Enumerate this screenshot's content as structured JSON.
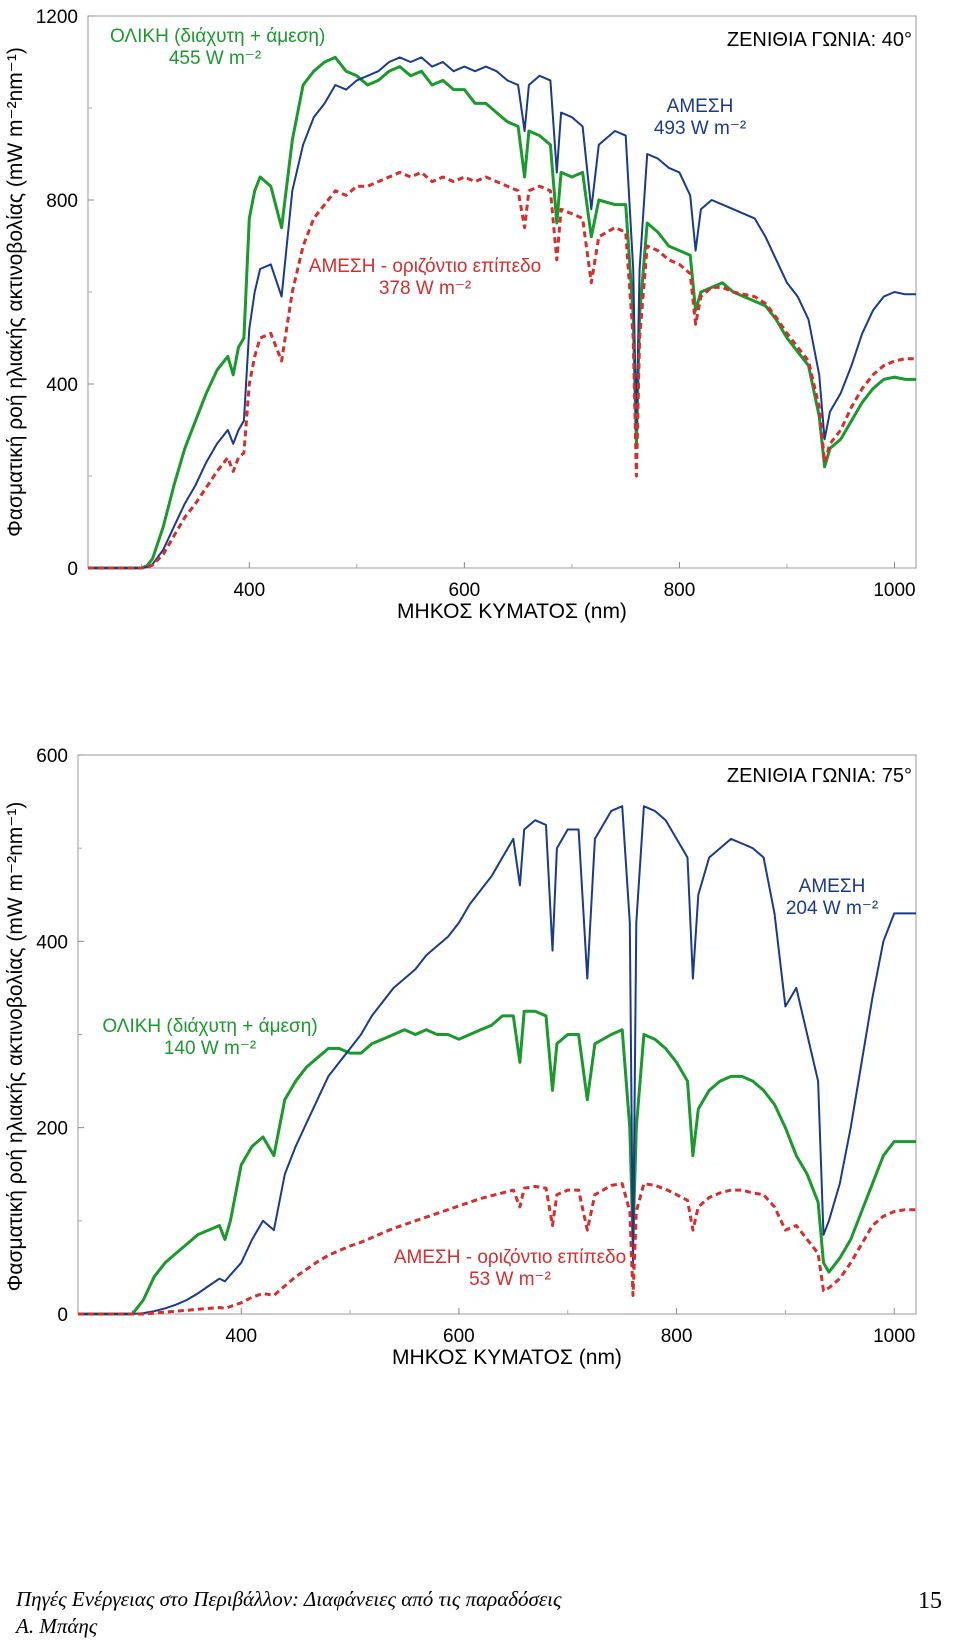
{
  "chart_data": [
    {
      "type": "line",
      "title": "ΖΕΝΙΘΙΑ ΓΩΝΙΑ: 40°",
      "xlabel": "ΜΗΚΟΣ ΚΥΜΑΤΟΣ (nm)",
      "ylabel": "Φασματική ροή ηλιακής ακτινοβολίας (mW m⁻²nm⁻¹)",
      "xlim": [
        250,
        1020
      ],
      "ylim": [
        0,
        1200
      ],
      "xticks": [
        400,
        600,
        800,
        1000
      ],
      "yticks": [
        0,
        400,
        800,
        1200
      ],
      "series": [
        {
          "name": "ΟΛΙΚΗ (διάχυτη + άμεση)",
          "value_label": "455 W m⁻²",
          "color": "#1a9a2c",
          "dashed": false,
          "x": [
            250,
            300,
            305,
            310,
            320,
            330,
            340,
            350,
            360,
            370,
            380,
            385,
            390,
            395,
            400,
            405,
            410,
            420,
            430,
            440,
            450,
            460,
            470,
            480,
            490,
            500,
            510,
            520,
            530,
            540,
            550,
            560,
            570,
            580,
            590,
            600,
            610,
            620,
            630,
            640,
            650,
            656,
            660,
            670,
            680,
            686,
            690,
            700,
            710,
            718,
            725,
            740,
            750,
            757,
            760,
            763,
            770,
            780,
            790,
            800,
            810,
            815,
            820,
            830,
            840,
            850,
            860,
            870,
            880,
            890,
            900,
            910,
            920,
            930,
            935,
            940,
            950,
            960,
            970,
            980,
            990,
            1000,
            1010,
            1020
          ],
          "y": [
            0,
            0,
            5,
            20,
            90,
            180,
            260,
            320,
            380,
            430,
            460,
            420,
            480,
            500,
            760,
            820,
            850,
            830,
            740,
            930,
            1050,
            1080,
            1100,
            1110,
            1080,
            1070,
            1050,
            1060,
            1080,
            1090,
            1070,
            1080,
            1050,
            1060,
            1040,
            1040,
            1010,
            1010,
            990,
            970,
            960,
            850,
            950,
            940,
            920,
            750,
            860,
            850,
            860,
            720,
            800,
            790,
            790,
            550,
            270,
            550,
            750,
            730,
            700,
            690,
            680,
            560,
            600,
            610,
            620,
            600,
            590,
            580,
            570,
            540,
            500,
            470,
            440,
            330,
            220,
            260,
            280,
            320,
            360,
            390,
            410,
            415,
            410,
            410
          ]
        },
        {
          "name": "ΑΜΕΣΗ",
          "value_label": "493 W m⁻²",
          "color": "#1a3a8c",
          "dashed": false,
          "x": [
            250,
            300,
            305,
            310,
            320,
            330,
            340,
            350,
            360,
            370,
            380,
            385,
            390,
            395,
            400,
            405,
            410,
            420,
            430,
            440,
            450,
            460,
            470,
            480,
            490,
            500,
            510,
            520,
            530,
            540,
            550,
            560,
            570,
            580,
            590,
            600,
            610,
            620,
            630,
            640,
            650,
            656,
            660,
            670,
            680,
            686,
            690,
            700,
            710,
            718,
            725,
            740,
            750,
            757,
            760,
            763,
            770,
            780,
            790,
            800,
            810,
            815,
            820,
            830,
            840,
            850,
            860,
            870,
            880,
            890,
            900,
            910,
            920,
            930,
            935,
            940,
            950,
            960,
            970,
            980,
            990,
            1000,
            1010,
            1020
          ],
          "y": [
            0,
            0,
            2,
            8,
            40,
            90,
            140,
            180,
            230,
            270,
            300,
            270,
            300,
            320,
            520,
            600,
            650,
            660,
            590,
            820,
            920,
            980,
            1010,
            1050,
            1040,
            1060,
            1070,
            1080,
            1100,
            1110,
            1100,
            1110,
            1090,
            1100,
            1080,
            1090,
            1080,
            1090,
            1080,
            1060,
            1050,
            950,
            1050,
            1070,
            1060,
            860,
            990,
            980,
            960,
            780,
            920,
            950,
            940,
            650,
            300,
            650,
            900,
            890,
            870,
            860,
            810,
            690,
            780,
            800,
            790,
            780,
            770,
            760,
            720,
            670,
            620,
            590,
            540,
            420,
            280,
            340,
            380,
            440,
            510,
            560,
            590,
            600,
            595,
            595
          ]
        },
        {
          "name": "ΑΜΕΣΗ - οριζόντιο επίπεδο",
          "value_label": "378 W m⁻²",
          "color": "#d62d2d",
          "dashed": true,
          "x": [
            250,
            300,
            305,
            310,
            320,
            330,
            340,
            350,
            360,
            370,
            380,
            385,
            390,
            395,
            400,
            405,
            410,
            420,
            430,
            440,
            450,
            460,
            470,
            480,
            490,
            500,
            510,
            520,
            530,
            540,
            550,
            560,
            570,
            580,
            590,
            600,
            610,
            620,
            630,
            640,
            650,
            656,
            660,
            670,
            680,
            686,
            690,
            700,
            710,
            718,
            725,
            740,
            750,
            757,
            760,
            763,
            770,
            780,
            790,
            800,
            810,
            815,
            820,
            830,
            840,
            850,
            860,
            870,
            880,
            890,
            900,
            910,
            920,
            930,
            935,
            940,
            950,
            960,
            970,
            980,
            990,
            1000,
            1010,
            1020
          ],
          "y": [
            0,
            0,
            2,
            6,
            30,
            70,
            110,
            140,
            175,
            210,
            240,
            210,
            240,
            250,
            400,
            460,
            500,
            510,
            450,
            600,
            700,
            760,
            790,
            820,
            810,
            830,
            830,
            840,
            850,
            860,
            850,
            860,
            840,
            850,
            840,
            850,
            840,
            850,
            840,
            830,
            820,
            740,
            820,
            830,
            820,
            670,
            780,
            770,
            760,
            620,
            720,
            740,
            730,
            500,
            200,
            500,
            700,
            690,
            670,
            660,
            640,
            530,
            590,
            610,
            610,
            600,
            595,
            590,
            575,
            545,
            510,
            480,
            450,
            350,
            230,
            270,
            300,
            350,
            390,
            420,
            440,
            450,
            455,
            455
          ]
        }
      ]
    },
    {
      "type": "line",
      "title": "ΖΕΝΙΘΙΑ ΓΩΝΙΑ: 75°",
      "xlabel": "ΜΗΚΟΣ ΚΥΜΑΤΟΣ (nm)",
      "ylabel": "Φασματική ροή ηλιακής ακτινοβολίας (mW m⁻²nm⁻¹)",
      "xlim": [
        250,
        1020
      ],
      "ylim": [
        0,
        600
      ],
      "xticks": [
        400,
        600,
        800,
        1000
      ],
      "yticks": [
        0,
        200,
        400,
        600
      ],
      "series": [
        {
          "name": "ΟΛΙΚΗ (διάχυτη + άμεση)",
          "value_label": "140 W m⁻²",
          "color": "#1a9a2c",
          "dashed": false,
          "x": [
            250,
            300,
            310,
            320,
            330,
            340,
            350,
            360,
            370,
            380,
            385,
            390,
            400,
            410,
            420,
            430,
            440,
            450,
            460,
            470,
            480,
            490,
            500,
            510,
            520,
            530,
            540,
            550,
            560,
            570,
            580,
            590,
            600,
            610,
            620,
            630,
            640,
            650,
            656,
            660,
            670,
            680,
            686,
            690,
            700,
            710,
            718,
            725,
            740,
            750,
            757,
            760,
            763,
            770,
            780,
            790,
            800,
            810,
            815,
            820,
            830,
            840,
            850,
            860,
            870,
            880,
            890,
            900,
            910,
            920,
            930,
            935,
            940,
            950,
            960,
            970,
            980,
            990,
            1000,
            1010,
            1020
          ],
          "y": [
            0,
            0,
            15,
            40,
            55,
            65,
            75,
            85,
            90,
            95,
            80,
            100,
            160,
            180,
            190,
            170,
            230,
            250,
            265,
            275,
            285,
            285,
            280,
            280,
            290,
            295,
            300,
            305,
            300,
            305,
            300,
            300,
            295,
            300,
            305,
            310,
            320,
            320,
            270,
            325,
            325,
            320,
            240,
            290,
            300,
            300,
            230,
            290,
            300,
            305,
            200,
            80,
            200,
            300,
            295,
            285,
            270,
            250,
            170,
            220,
            240,
            250,
            255,
            255,
            250,
            240,
            225,
            200,
            170,
            150,
            120,
            55,
            45,
            60,
            80,
            110,
            140,
            170,
            185,
            185,
            185
          ]
        },
        {
          "name": "ΑΜΕΣΗ",
          "value_label": "204 W m⁻²",
          "color": "#1a3a8c",
          "dashed": false,
          "x": [
            250,
            300,
            310,
            320,
            330,
            340,
            350,
            360,
            370,
            380,
            385,
            390,
            400,
            410,
            420,
            430,
            440,
            450,
            460,
            470,
            480,
            490,
            500,
            510,
            520,
            530,
            540,
            550,
            560,
            570,
            580,
            590,
            600,
            610,
            620,
            630,
            640,
            650,
            656,
            660,
            670,
            680,
            686,
            690,
            700,
            710,
            718,
            725,
            740,
            750,
            757,
            760,
            763,
            770,
            780,
            790,
            800,
            810,
            815,
            820,
            830,
            840,
            850,
            860,
            870,
            880,
            890,
            900,
            910,
            920,
            930,
            935,
            940,
            950,
            960,
            970,
            980,
            990,
            1000,
            1010,
            1020
          ],
          "y": [
            0,
            0,
            1,
            3,
            6,
            10,
            15,
            22,
            30,
            38,
            35,
            42,
            55,
            80,
            100,
            90,
            150,
            180,
            205,
            230,
            255,
            270,
            285,
            300,
            320,
            335,
            350,
            360,
            370,
            385,
            395,
            405,
            420,
            440,
            455,
            470,
            490,
            510,
            460,
            520,
            530,
            525,
            390,
            500,
            520,
            520,
            360,
            510,
            540,
            545,
            420,
            50,
            420,
            545,
            540,
            530,
            510,
            490,
            360,
            450,
            490,
            500,
            510,
            505,
            500,
            490,
            430,
            330,
            350,
            300,
            250,
            85,
            100,
            140,
            200,
            270,
            340,
            400,
            430,
            430,
            430
          ]
        },
        {
          "name": "ΑΜΕΣΗ - οριζόντιο επίπεδο",
          "value_label": "53 W m⁻²",
          "color": "#d62d2d",
          "dashed": true,
          "x": [
            250,
            300,
            310,
            320,
            330,
            340,
            350,
            360,
            370,
            380,
            385,
            390,
            400,
            410,
            420,
            430,
            440,
            450,
            460,
            470,
            480,
            490,
            500,
            510,
            520,
            530,
            540,
            550,
            560,
            570,
            580,
            590,
            600,
            610,
            620,
            630,
            640,
            650,
            656,
            660,
            670,
            680,
            686,
            690,
            700,
            710,
            718,
            725,
            740,
            750,
            757,
            760,
            763,
            770,
            780,
            790,
            800,
            810,
            815,
            820,
            830,
            840,
            850,
            860,
            870,
            880,
            890,
            900,
            910,
            920,
            930,
            935,
            940,
            950,
            960,
            970,
            980,
            990,
            1000,
            1010,
            1020
          ],
          "y": [
            0,
            0,
            0,
            1,
            2,
            3,
            4,
            5,
            6,
            7,
            6,
            8,
            12,
            18,
            22,
            20,
            30,
            40,
            48,
            56,
            63,
            68,
            73,
            77,
            82,
            87,
            92,
            96,
            100,
            104,
            108,
            112,
            116,
            120,
            124,
            127,
            130,
            133,
            115,
            135,
            137,
            135,
            95,
            128,
            133,
            133,
            90,
            128,
            138,
            140,
            110,
            20,
            110,
            140,
            138,
            134,
            128,
            122,
            90,
            115,
            125,
            130,
            133,
            133,
            130,
            128,
            115,
            90,
            95,
            80,
            65,
            25,
            28,
            38,
            55,
            75,
            95,
            105,
            110,
            112,
            112
          ]
        }
      ]
    }
  ],
  "footer": {
    "line1": "Πηγές Ενέργειας στο Περιβάλλον: Διαφάνειες από τις παραδόσεις",
    "line2": "Α. Μπάης",
    "page_number": "15"
  }
}
